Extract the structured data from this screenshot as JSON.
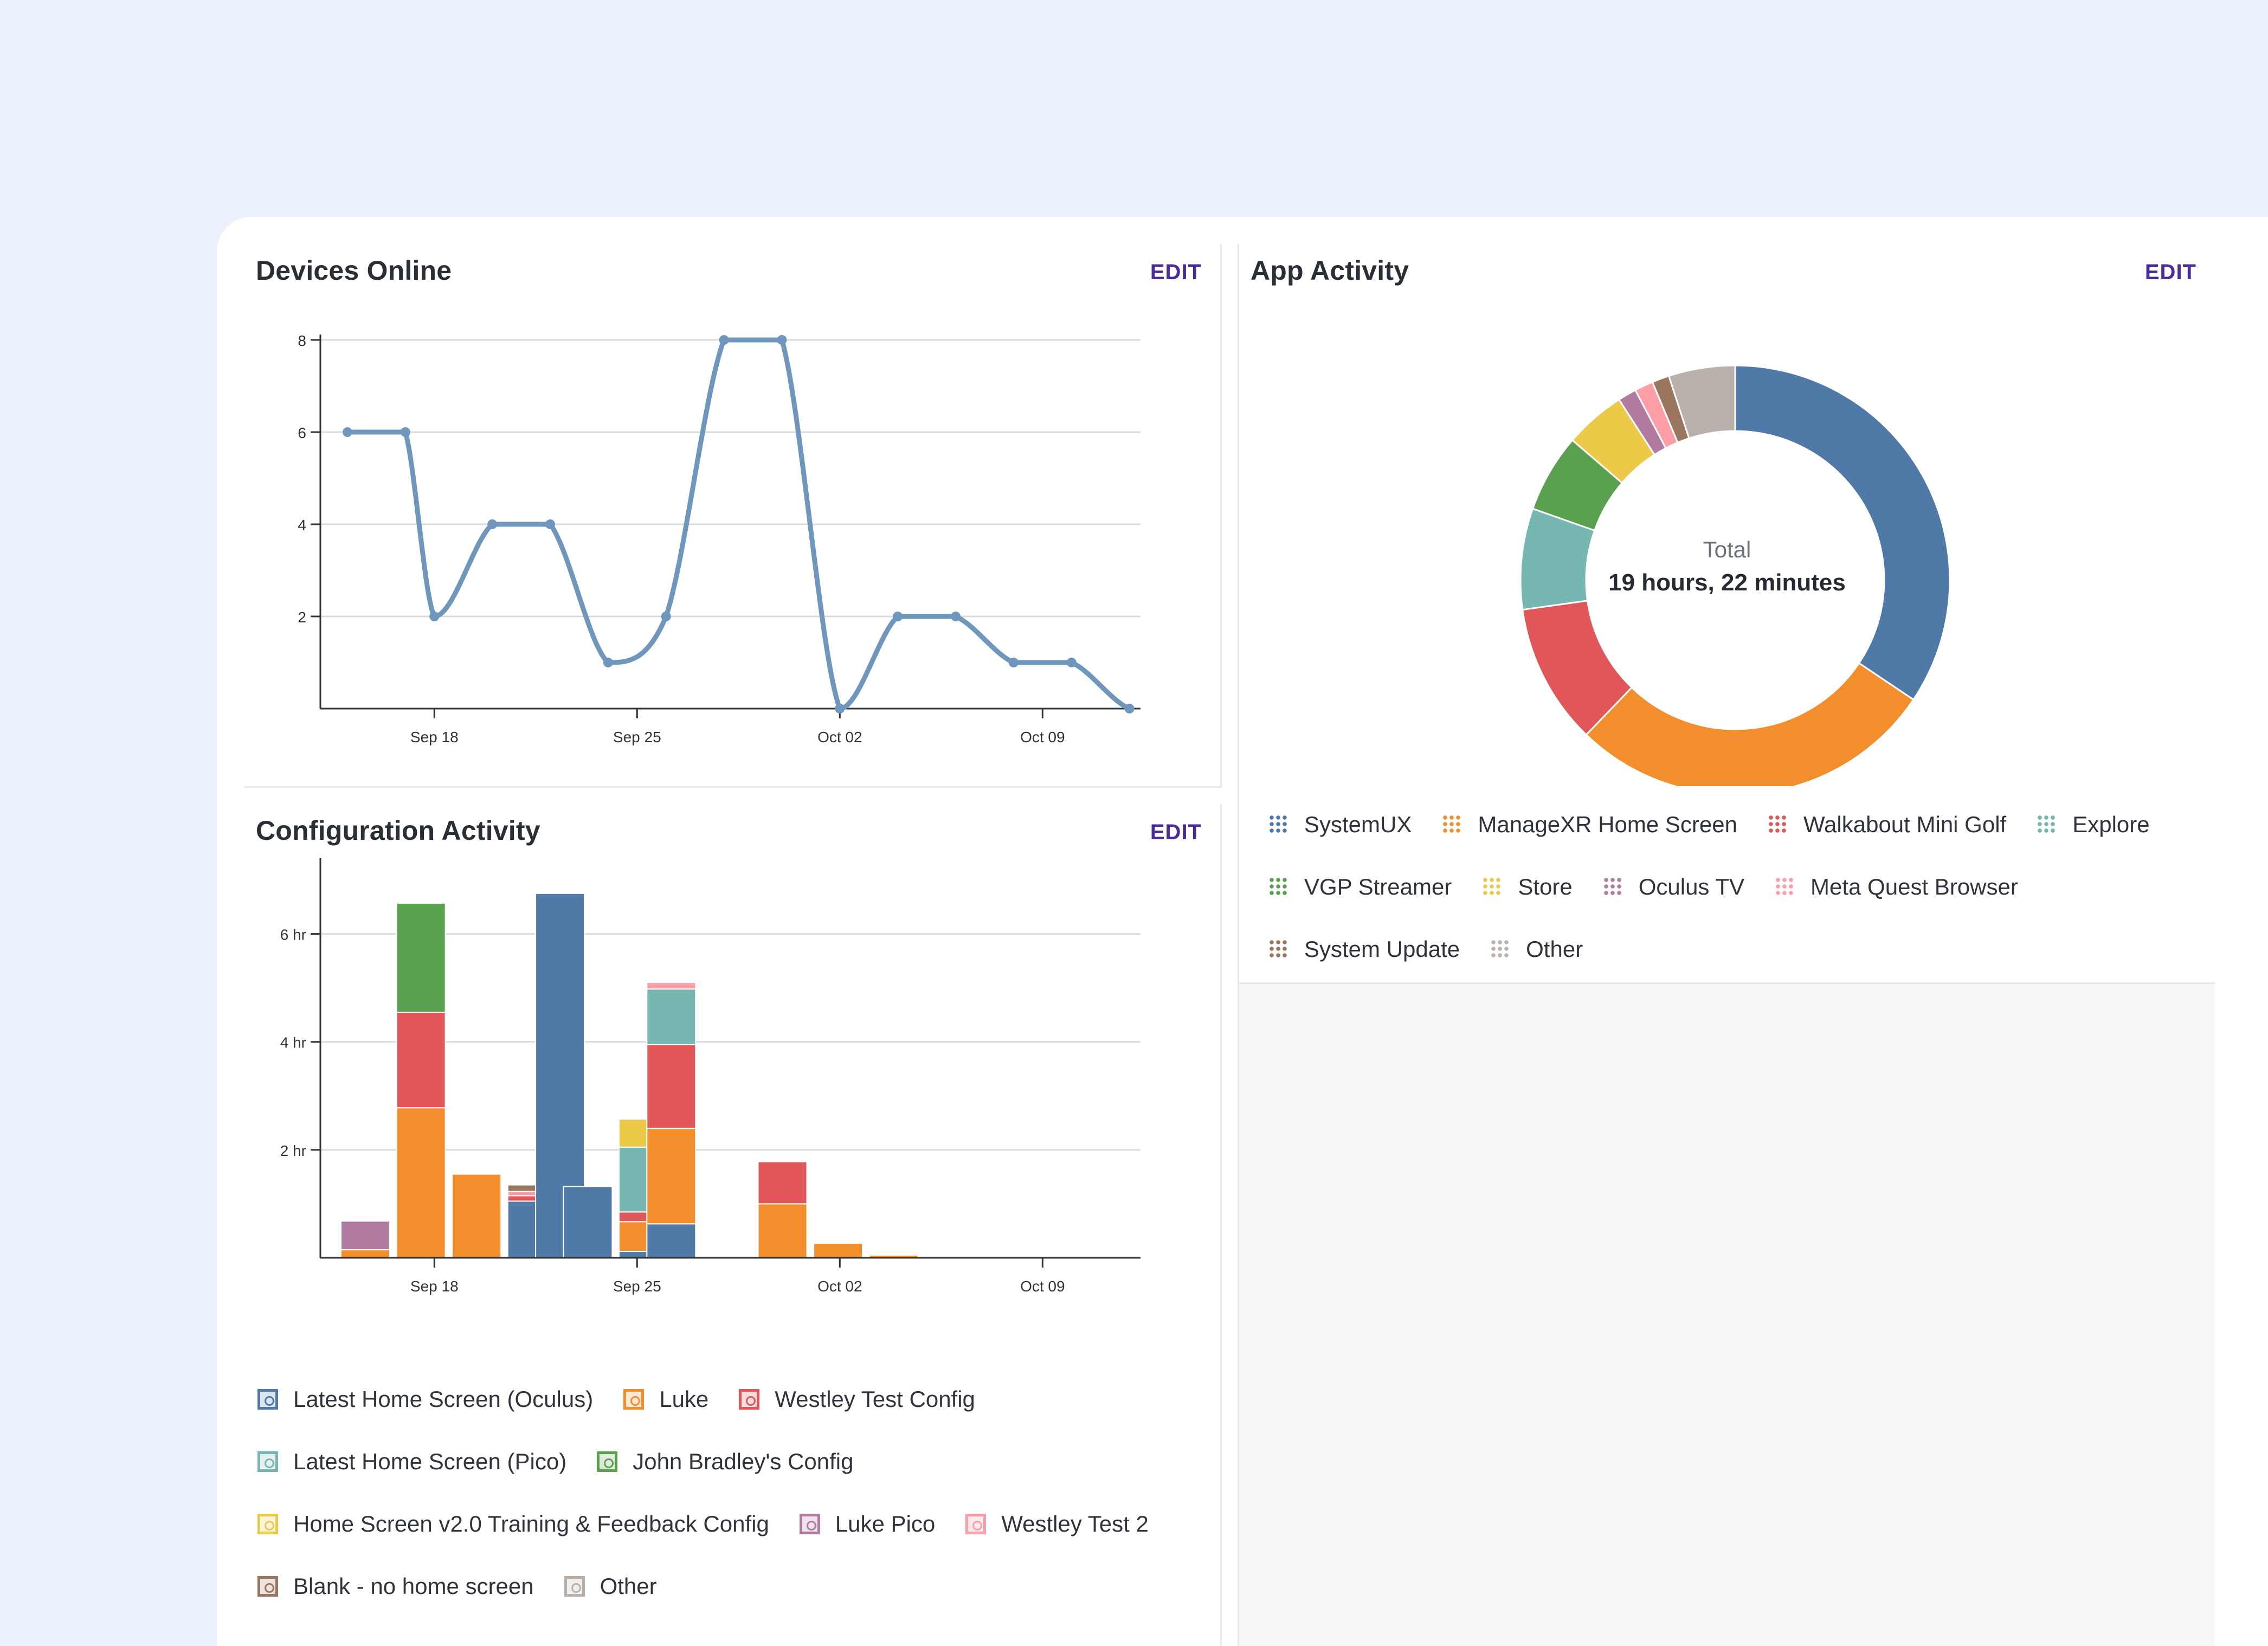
{
  "devices_online": {
    "title": "Devices Online",
    "edit_label": "EDIT",
    "chart_data": {
      "type": "line",
      "x": [
        "2024-09-15",
        "2024-09-16",
        "2024-09-17",
        "2024-09-18",
        "2024-09-19",
        "2024-09-20",
        "2024-09-21",
        "2024-09-22",
        "2024-09-23",
        "2024-09-24",
        "2024-09-25",
        "2024-09-26",
        "2024-09-27",
        "2024-09-28",
        "2024-09-29",
        "2024-09-30",
        "2024-10-01",
        "2024-10-02",
        "2024-10-03",
        "2024-10-04",
        "2024-10-05",
        "2024-10-06",
        "2024-10-07",
        "2024-10-08",
        "2024-10-09",
        "2024-10-10",
        "2024-10-11",
        "2024-10-12"
      ],
      "values": [
        6,
        null,
        6,
        2,
        null,
        4,
        null,
        4,
        null,
        1,
        null,
        2,
        null,
        8,
        null,
        8,
        null,
        0,
        null,
        2,
        null,
        2,
        null,
        1,
        null,
        1,
        null,
        0
      ],
      "x_ticks": [
        "Sep 18",
        "Sep 25",
        "Oct 02",
        "Oct 09"
      ],
      "y_ticks": [
        "2",
        "4",
        "6",
        "8"
      ],
      "ylim": [
        0,
        8
      ],
      "grid": true,
      "color": "#6f97bd"
    }
  },
  "configuration_activity": {
    "title": "Configuration Activity",
    "edit_label": "EDIT",
    "chart_data": {
      "type": "bar",
      "stacked": true,
      "unit": "hr",
      "categories": [
        "Sep 15",
        "Sep 17",
        "Sep 19",
        "Sep 21",
        "Sep 22",
        "Sep 23",
        "Sep 25",
        "Sep 26",
        "Sep 28",
        "Sep 30",
        "Oct 02",
        "Oct 04",
        "Oct 06",
        "Oct 08",
        "Oct 10",
        "Oct 12"
      ],
      "x_ticks": [
        "Sep 18",
        "Sep 25",
        "Oct 02",
        "Oct 09"
      ],
      "y_ticks": [
        "2 hr",
        "4 hr",
        "6 hr"
      ],
      "ylim": [
        0,
        7
      ],
      "grid": true,
      "series": [
        {
          "name": "Latest Home Screen (Oculus)",
          "color": "#4f79a7",
          "values": [
            0,
            0,
            0,
            1.05,
            6.75,
            1.32,
            0.12,
            0.63,
            0,
            0,
            0,
            0,
            0,
            0,
            0,
            0
          ]
        },
        {
          "name": "Luke",
          "color": "#f28e2b",
          "values": [
            0.15,
            2.78,
            1.55,
            0,
            0,
            0,
            0.55,
            1.77,
            0,
            1.0,
            0.27,
            0.05,
            0,
            0,
            0,
            0
          ]
        },
        {
          "name": "Westley Test Config",
          "color": "#e15759",
          "values": [
            0,
            1.77,
            0,
            0.1,
            0,
            0,
            0.18,
            1.55,
            0,
            0.78,
            0,
            0,
            0,
            0,
            0,
            0
          ]
        },
        {
          "name": "Latest Home Screen (Pico)",
          "color": "#76b7b2",
          "values": [
            0,
            0,
            0,
            0,
            0,
            0,
            1.2,
            1.03,
            0,
            0,
            0,
            0,
            0,
            0,
            0,
            0
          ]
        },
        {
          "name": "John Bradley's Config",
          "color": "#59a14f",
          "values": [
            0,
            2.02,
            0,
            0,
            0,
            0,
            0,
            0,
            0,
            0,
            0,
            0,
            0,
            0,
            0,
            0
          ]
        },
        {
          "name": "Home Screen v2.0 Training & Feedback Config",
          "color": "#edc948",
          "values": [
            0,
            0,
            0,
            0,
            0,
            0,
            0.52,
            0,
            0,
            0,
            0,
            0,
            0,
            0,
            0,
            0
          ]
        },
        {
          "name": "Luke Pico",
          "color": "#b07aa1",
          "values": [
            0.53,
            0,
            0,
            0,
            0,
            0,
            0,
            0,
            0,
            0,
            0,
            0,
            0,
            0,
            0,
            0
          ]
        },
        {
          "name": "Westley Test 2",
          "color": "#ff9da7",
          "values": [
            0,
            0,
            0,
            0.08,
            0,
            0,
            0,
            0.12,
            0,
            0,
            0,
            0,
            0,
            0,
            0,
            0
          ]
        },
        {
          "name": "Blank - no home screen",
          "color": "#9c755f",
          "values": [
            0,
            0,
            0,
            0.12,
            0,
            0,
            0,
            0,
            0,
            0,
            0,
            0,
            0,
            0,
            0,
            0
          ]
        },
        {
          "name": "Other",
          "color": "#bab0ac",
          "values": [
            0,
            0,
            0,
            0,
            0,
            0,
            0,
            0,
            0,
            0,
            0,
            0,
            0,
            0,
            0,
            0
          ]
        }
      ]
    }
  },
  "app_activity": {
    "title": "App Activity",
    "edit_label": "EDIT",
    "center_label": "Total",
    "center_value": "19 hours, 22 minutes",
    "chart_data": {
      "type": "pie",
      "donut": true,
      "series": [
        {
          "name": "SystemUX",
          "color": "#4f79a7",
          "value": 34.4
        },
        {
          "name": "ManageXR Home Screen",
          "color": "#f28e2b",
          "value": 27.8
        },
        {
          "name": "Walkabout Mini Golf",
          "color": "#e15759",
          "value": 10.6
        },
        {
          "name": "Explore",
          "color": "#76b7b2",
          "value": 7.6
        },
        {
          "name": "VGP Streamer",
          "color": "#59a14f",
          "value": 5.9
        },
        {
          "name": "Store",
          "color": "#edc948",
          "value": 4.6
        },
        {
          "name": "Oculus TV",
          "color": "#b07aa1",
          "value": 1.4
        },
        {
          "name": "Meta Quest Browser",
          "color": "#ff9da7",
          "value": 1.4
        },
        {
          "name": "System Update",
          "color": "#9c755f",
          "value": 1.3
        },
        {
          "name": "Other",
          "color": "#bab0ac",
          "value": 5.0
        }
      ]
    }
  }
}
